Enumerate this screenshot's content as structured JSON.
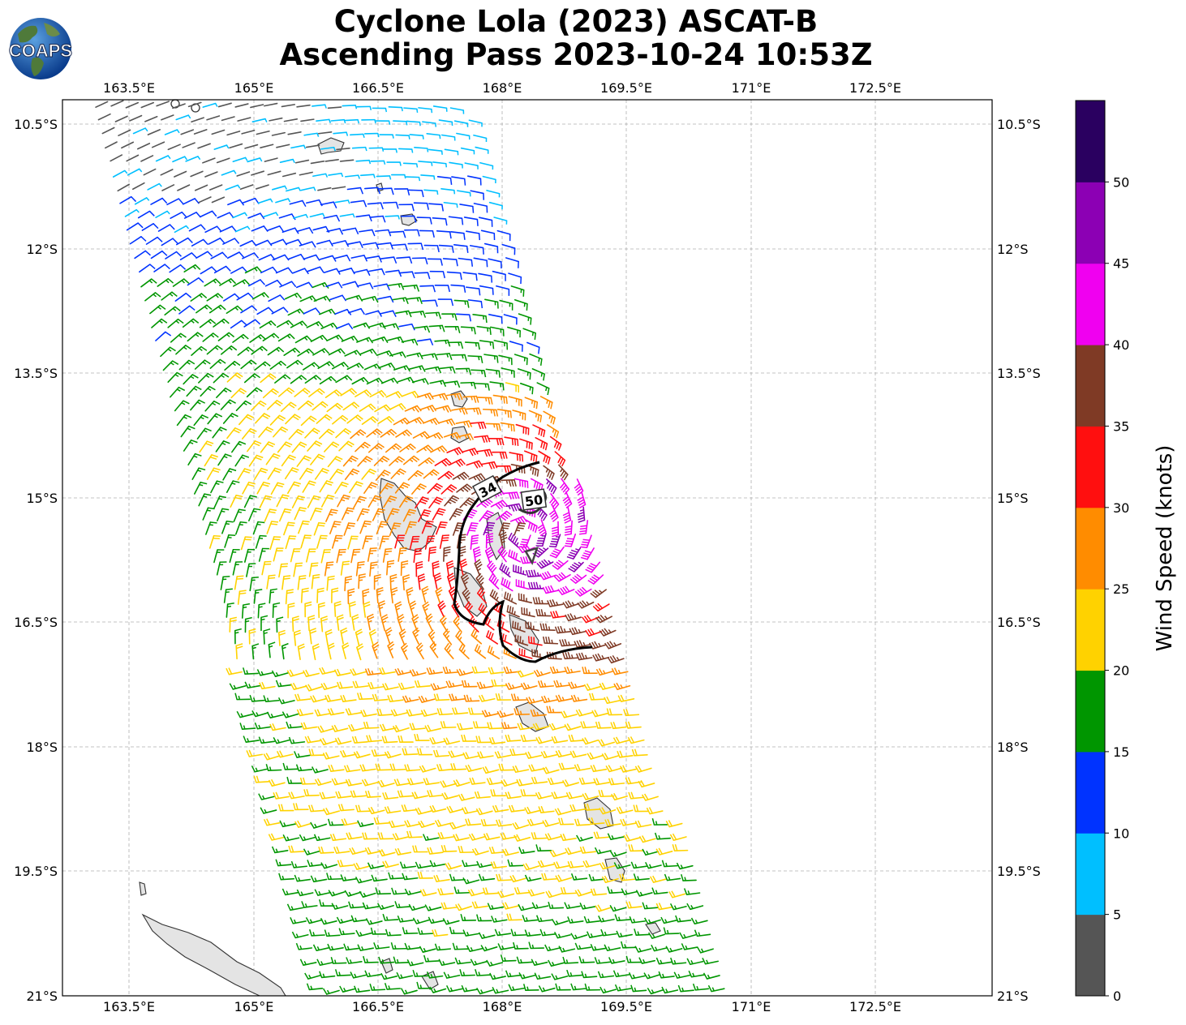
{
  "title": {
    "line1": "Cyclone Lola (2023) ASCAT-B",
    "line2": "Ascending Pass 2023-10-24 10:53Z"
  },
  "logo": {
    "text": "COAPS"
  },
  "map": {
    "lon_ticks": [
      "163.5°E",
      "165°E",
      "166.5°E",
      "168°E",
      "169.5°E",
      "171°E",
      "172.5°E"
    ],
    "lat_ticks": [
      "10.5°S",
      "12°S",
      "13.5°S",
      "15°S",
      "16.5°S",
      "18°S",
      "19.5°S",
      "21°S"
    ],
    "extent": {
      "lon_min": 162.7,
      "lon_max": 173.9,
      "lat_max": -10.2,
      "lat_min": -21.0
    },
    "grid": true,
    "contours": [
      {
        "label": "34",
        "units": "knots"
      },
      {
        "label": "50",
        "units": "knots"
      }
    ],
    "center_symbol": "storm-center-triangle-icon"
  },
  "colorbar": {
    "label": "Wind Speed (knots)",
    "ticks": [
      "0",
      "5",
      "10",
      "15",
      "20",
      "25",
      "30",
      "35",
      "40",
      "45",
      "50"
    ],
    "colors": [
      "#555555",
      "#00bfff",
      "#0033ff",
      "#009600",
      "#ffd200",
      "#ff8c00",
      "#ff0f0f",
      "#7f3a25",
      "#f000f0",
      "#8c00b4",
      "#2a0060"
    ]
  }
}
